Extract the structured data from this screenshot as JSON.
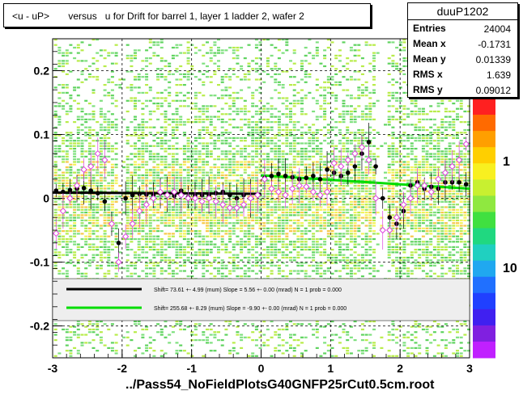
{
  "title": "<u - uP>       versus   u for Drift for barrel 1, layer 1 ladder 2, wafer 2",
  "footer": "../Pass54_NoFieldPlotsG40GNFP25rCut0.5cm.root",
  "stats": {
    "name": "duuP1202",
    "rows": [
      {
        "key": "Entries",
        "value": "24004"
      },
      {
        "key": "Mean x",
        "value": "-0.1731"
      },
      {
        "key": "Mean y",
        "value": "0.01339"
      },
      {
        "key": "RMS x",
        "value": "1.639"
      },
      {
        "key": "RMS y",
        "value": "0.09012"
      }
    ]
  },
  "legend": [
    {
      "text": "Shift=    73.61 +- 4.99 (mum) Slope =    5.56 +- 0.00 (mrad)  N = 1 prob = 0.000",
      "color": "#000000"
    },
    {
      "text": "Shift=   255.68 +- 8.29 (mum) Slope =   -9.90 +- 0.00 (mrad)  N = 1 prob = 0.000",
      "color": "#00dd00"
    }
  ],
  "colorbar_labels": [
    "10",
    "1",
    "10"
  ],
  "chart_data": {
    "type": "scatter",
    "xlim": [
      -3,
      3
    ],
    "ylim": [
      -0.25,
      0.25
    ],
    "x_ticks": [
      "-3",
      "-2",
      "-1",
      "0",
      "1",
      "2",
      "3"
    ],
    "y_ticks": [
      "-0.2",
      "-0.1",
      "0",
      "0.1",
      "0.2"
    ],
    "grid": true,
    "series": [
      {
        "marker": "filled-circle",
        "color": "#000000",
        "points": [
          [
            -2.95,
            0.012
          ],
          [
            -2.85,
            0.01
          ],
          [
            -2.75,
            0.013
          ],
          [
            -2.65,
            0.015
          ],
          [
            -2.55,
            0.016
          ],
          [
            -2.45,
            0.012
          ],
          [
            -2.35,
            0.008
          ],
          [
            -2.25,
            -0.005
          ],
          [
            -2.15,
            -0.04
          ],
          [
            -2.05,
            -0.07
          ],
          [
            -1.95,
            0.0
          ],
          [
            -1.85,
            0.005
          ],
          [
            -1.75,
            0.007
          ],
          [
            -1.65,
            0.006
          ],
          [
            -1.55,
            0.005
          ],
          [
            -1.45,
            0.008
          ],
          [
            -1.35,
            0.006
          ],
          [
            -1.25,
            0.004
          ],
          [
            -1.15,
            0.012
          ],
          [
            -1.05,
            0.002
          ],
          [
            -0.95,
            0.004
          ],
          [
            -0.85,
            0.005
          ],
          [
            -0.75,
            0.005
          ],
          [
            -0.65,
            0.008
          ],
          [
            -0.55,
            0.01
          ],
          [
            -0.45,
            0.005
          ],
          [
            -0.35,
            0.0
          ],
          [
            -0.25,
            0.005
          ],
          [
            -0.15,
            0.0
          ],
          [
            -0.05,
            0.005
          ],
          [
            0.05,
            0.032
          ],
          [
            0.15,
            0.035
          ],
          [
            0.25,
            0.038
          ],
          [
            0.35,
            0.035
          ],
          [
            0.45,
            0.033
          ],
          [
            0.55,
            0.03
          ],
          [
            0.65,
            0.032
          ],
          [
            0.75,
            0.035
          ],
          [
            0.85,
            0.03
          ],
          [
            0.95,
            0.045
          ],
          [
            1.05,
            0.04
          ],
          [
            1.15,
            0.035
          ],
          [
            1.25,
            0.04
          ],
          [
            1.35,
            0.05
          ],
          [
            1.45,
            0.07
          ],
          [
            1.55,
            0.088
          ],
          [
            1.65,
            0.05
          ],
          [
            1.75,
            0.0
          ],
          [
            1.85,
            -0.03
          ],
          [
            1.95,
            -0.04
          ],
          [
            2.05,
            -0.02
          ],
          [
            2.15,
            0.02
          ],
          [
            2.25,
            0.025
          ],
          [
            2.35,
            0.015
          ],
          [
            2.45,
            0.018
          ],
          [
            2.55,
            0.015
          ],
          [
            2.65,
            0.025
          ],
          [
            2.75,
            0.025
          ],
          [
            2.85,
            0.025
          ],
          [
            2.95,
            0.022
          ]
        ]
      },
      {
        "marker": "open-diamond",
        "color": "#dd44dd",
        "points": [
          [
            -2.95,
            -0.055
          ],
          [
            -2.85,
            -0.02
          ],
          [
            -2.75,
            0.0
          ],
          [
            -2.65,
            0.02
          ],
          [
            -2.55,
            0.045
          ],
          [
            -2.45,
            0.05
          ],
          [
            -2.35,
            0.07
          ],
          [
            -2.25,
            0.06
          ],
          [
            -2.15,
            -0.04
          ],
          [
            -2.05,
            -0.1
          ],
          [
            -1.95,
            -0.06
          ],
          [
            -1.85,
            -0.04
          ],
          [
            -1.75,
            -0.02
          ],
          [
            -1.65,
            -0.01
          ],
          [
            -1.55,
            0.0
          ],
          [
            -1.45,
            0.01
          ],
          [
            -1.35,
            0.005
          ],
          [
            -1.25,
            0.01
          ],
          [
            -1.15,
            0.005
          ],
          [
            -1.05,
            0.0
          ],
          [
            -0.95,
            0.0
          ],
          [
            -0.85,
            -0.005
          ],
          [
            -0.75,
            0.0
          ],
          [
            -0.65,
            -0.005
          ],
          [
            -0.55,
            -0.01
          ],
          [
            -0.45,
            -0.015
          ],
          [
            -0.35,
            -0.015
          ],
          [
            -0.25,
            -0.01
          ],
          [
            -0.15,
            0.0
          ],
          [
            -0.05,
            0.005
          ],
          [
            0.05,
            0.03
          ],
          [
            0.15,
            0.015
          ],
          [
            0.25,
            0.01
          ],
          [
            0.35,
            0.005
          ],
          [
            0.45,
            0.015
          ],
          [
            0.55,
            0.02
          ],
          [
            0.65,
            0.018
          ],
          [
            0.75,
            0.01
          ],
          [
            0.85,
            0.005
          ],
          [
            0.95,
            0.01
          ],
          [
            1.05,
            0.055
          ],
          [
            1.15,
            0.05
          ],
          [
            1.25,
            0.06
          ],
          [
            1.35,
            0.07
          ],
          [
            1.45,
            0.08
          ],
          [
            1.55,
            0.06
          ],
          [
            1.65,
            0.0
          ],
          [
            1.75,
            -0.05
          ],
          [
            1.85,
            -0.05
          ],
          [
            1.95,
            -0.03
          ],
          [
            2.05,
            -0.01
          ],
          [
            2.15,
            0.0
          ],
          [
            2.25,
            0.02
          ],
          [
            2.35,
            0.02
          ],
          [
            2.45,
            0.01
          ],
          [
            2.55,
            0.03
          ],
          [
            2.65,
            0.04
          ],
          [
            2.75,
            0.05
          ],
          [
            2.85,
            0.06
          ],
          [
            2.95,
            0.085
          ]
        ]
      }
    ],
    "fit_lines": [
      {
        "color": "#000000",
        "x": [
          -3,
          0
        ],
        "y": [
          0.009,
          0.007
        ]
      },
      {
        "color": "#00dd00",
        "x": [
          0,
          3
        ],
        "y": [
          0.036,
          0.015
        ]
      }
    ]
  }
}
